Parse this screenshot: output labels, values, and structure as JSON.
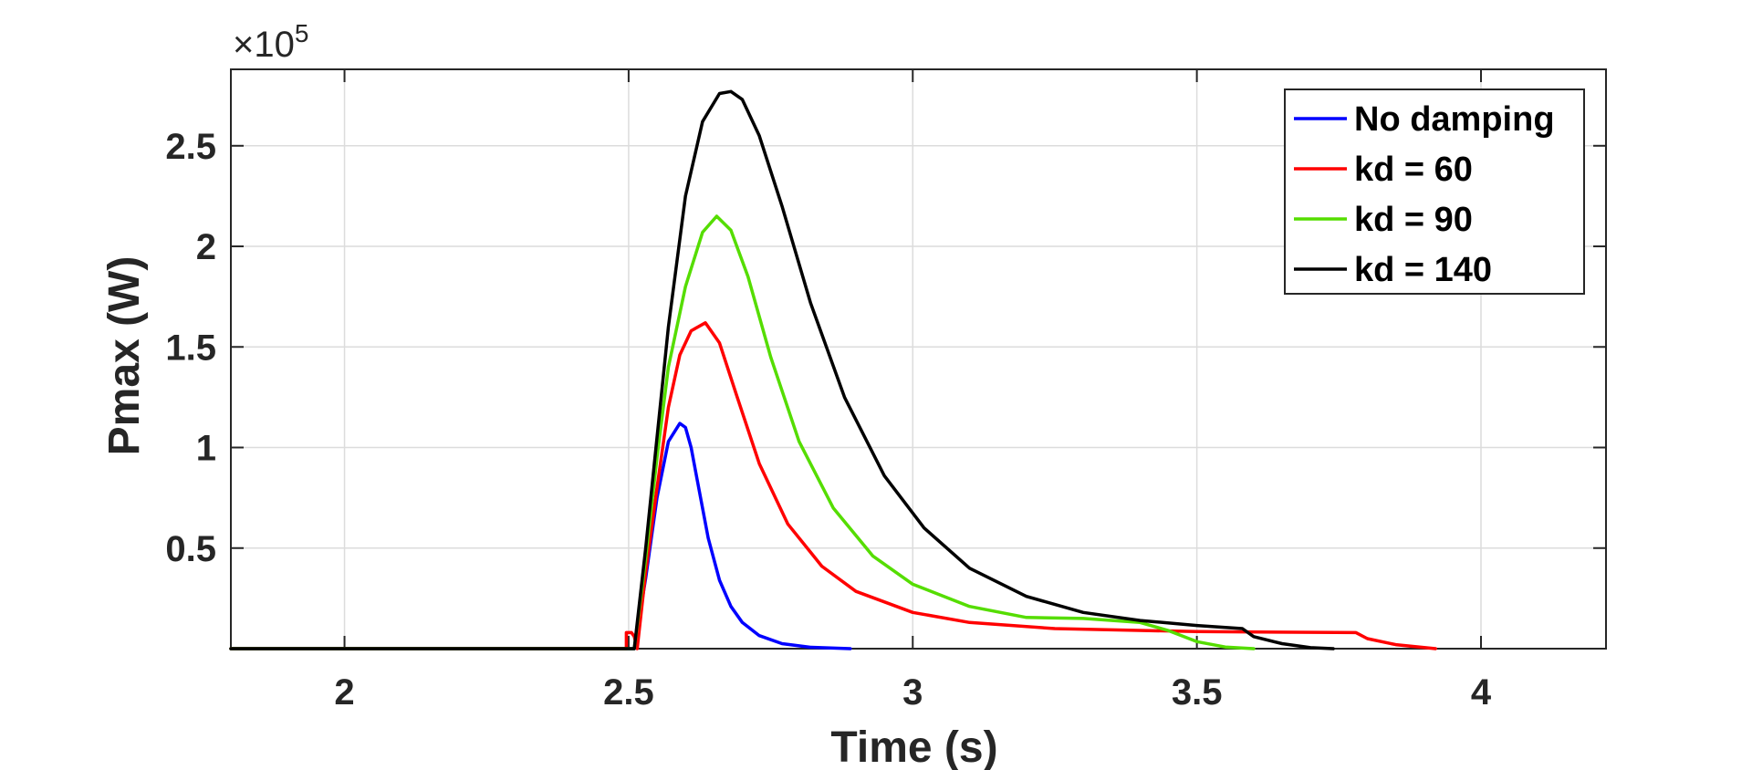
{
  "chart_data": {
    "type": "line",
    "xlabel": "Time (s)",
    "ylabel": "Pmax (W)",
    "y_exponent_label": "×10",
    "y_exponent": "5",
    "xlim": [
      1.8,
      4.22
    ],
    "ylim": [
      0,
      2.88
    ],
    "x_ticks": [
      {
        "value": 2,
        "label": "2"
      },
      {
        "value": 2.5,
        "label": "2.5"
      },
      {
        "value": 3,
        "label": "3"
      },
      {
        "value": 3.5,
        "label": "3.5"
      },
      {
        "value": 4,
        "label": "4"
      }
    ],
    "y_ticks": [
      {
        "value": 0.5,
        "label": "0.5"
      },
      {
        "value": 1,
        "label": "1"
      },
      {
        "value": 1.5,
        "label": "1.5"
      },
      {
        "value": 2,
        "label": "2"
      },
      {
        "value": 2.5,
        "label": "2.5"
      }
    ],
    "grid": true,
    "legend_position": "top-right",
    "colors": {
      "axis": "#262626",
      "grid": "#dcdcdc"
    },
    "series": [
      {
        "name": "No damping",
        "color": "#0000ff",
        "points": [
          [
            1.8,
            0
          ],
          [
            2.51,
            0
          ],
          [
            2.53,
            0.35
          ],
          [
            2.55,
            0.75
          ],
          [
            2.57,
            1.03
          ],
          [
            2.59,
            1.12
          ],
          [
            2.6,
            1.1
          ],
          [
            2.61,
            1.0
          ],
          [
            2.62,
            0.85
          ],
          [
            2.64,
            0.55
          ],
          [
            2.66,
            0.34
          ],
          [
            2.68,
            0.21
          ],
          [
            2.7,
            0.13
          ],
          [
            2.73,
            0.065
          ],
          [
            2.77,
            0.025
          ],
          [
            2.82,
            0.007
          ],
          [
            2.89,
            0
          ]
        ]
      },
      {
        "name": "kd = 60",
        "color": "#ff0000",
        "points": [
          [
            1.8,
            0
          ],
          [
            2.496,
            0
          ],
          [
            2.496,
            0.08
          ],
          [
            2.505,
            0.08
          ],
          [
            2.51,
            0.06
          ],
          [
            2.515,
            0
          ],
          [
            2.53,
            0.38
          ],
          [
            2.55,
            0.8
          ],
          [
            2.57,
            1.2
          ],
          [
            2.59,
            1.46
          ],
          [
            2.61,
            1.58
          ],
          [
            2.635,
            1.62
          ],
          [
            2.66,
            1.52
          ],
          [
            2.69,
            1.26
          ],
          [
            2.73,
            0.92
          ],
          [
            2.78,
            0.62
          ],
          [
            2.84,
            0.41
          ],
          [
            2.9,
            0.285
          ],
          [
            3.0,
            0.18
          ],
          [
            3.1,
            0.13
          ],
          [
            3.25,
            0.1
          ],
          [
            3.5,
            0.085
          ],
          [
            3.78,
            0.08
          ],
          [
            3.8,
            0.05
          ],
          [
            3.85,
            0.02
          ],
          [
            3.92,
            0
          ]
        ]
      },
      {
        "name": "kd = 90",
        "color": "#55dd00",
        "points": [
          [
            1.8,
            0
          ],
          [
            2.51,
            0
          ],
          [
            2.53,
            0.45
          ],
          [
            2.55,
            0.95
          ],
          [
            2.57,
            1.4
          ],
          [
            2.6,
            1.8
          ],
          [
            2.63,
            2.07
          ],
          [
            2.655,
            2.15
          ],
          [
            2.68,
            2.08
          ],
          [
            2.71,
            1.85
          ],
          [
            2.75,
            1.45
          ],
          [
            2.8,
            1.03
          ],
          [
            2.86,
            0.7
          ],
          [
            2.93,
            0.46
          ],
          [
            3.0,
            0.32
          ],
          [
            3.1,
            0.21
          ],
          [
            3.2,
            0.155
          ],
          [
            3.3,
            0.15
          ],
          [
            3.4,
            0.13
          ],
          [
            3.45,
            0.09
          ],
          [
            3.5,
            0.035
          ],
          [
            3.55,
            0.008
          ],
          [
            3.6,
            0
          ]
        ]
      },
      {
        "name": "kd = 140",
        "color": "#000000",
        "points": [
          [
            1.8,
            0
          ],
          [
            2.51,
            0
          ],
          [
            2.53,
            0.5
          ],
          [
            2.55,
            1.05
          ],
          [
            2.57,
            1.6
          ],
          [
            2.6,
            2.25
          ],
          [
            2.63,
            2.62
          ],
          [
            2.66,
            2.76
          ],
          [
            2.68,
            2.77
          ],
          [
            2.7,
            2.73
          ],
          [
            2.73,
            2.55
          ],
          [
            2.77,
            2.2
          ],
          [
            2.82,
            1.72
          ],
          [
            2.88,
            1.25
          ],
          [
            2.95,
            0.86
          ],
          [
            3.02,
            0.6
          ],
          [
            3.1,
            0.4
          ],
          [
            3.2,
            0.26
          ],
          [
            3.3,
            0.18
          ],
          [
            3.4,
            0.14
          ],
          [
            3.5,
            0.115
          ],
          [
            3.58,
            0.1
          ],
          [
            3.6,
            0.06
          ],
          [
            3.65,
            0.025
          ],
          [
            3.7,
            0.005
          ],
          [
            3.74,
            0
          ]
        ]
      }
    ]
  }
}
